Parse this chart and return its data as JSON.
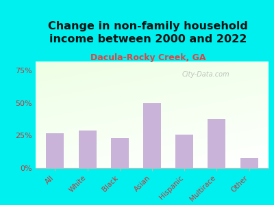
{
  "title": "Change in non-family household\nincome between 2000 and 2022",
  "subtitle": "Dacula-Rocky Creek, GA",
  "categories": [
    "All",
    "White",
    "Black",
    "Asian",
    "Hispanic",
    "Multirace",
    "Other"
  ],
  "values": [
    27,
    29,
    23,
    50,
    26,
    38,
    8
  ],
  "bar_color": "#c9b3d9",
  "title_fontsize": 11.5,
  "subtitle_fontsize": 9,
  "subtitle_color": "#dd4444",
  "title_color": "#111111",
  "background_color": "#00f0f0",
  "ylabel_color": "#cc3333",
  "xlabel_color": "#cc3333",
  "yticks": [
    0,
    25,
    50,
    75
  ],
  "ylim": [
    0,
    82
  ],
  "watermark": "City-Data.com",
  "watermark_color": "#aaaaaa"
}
